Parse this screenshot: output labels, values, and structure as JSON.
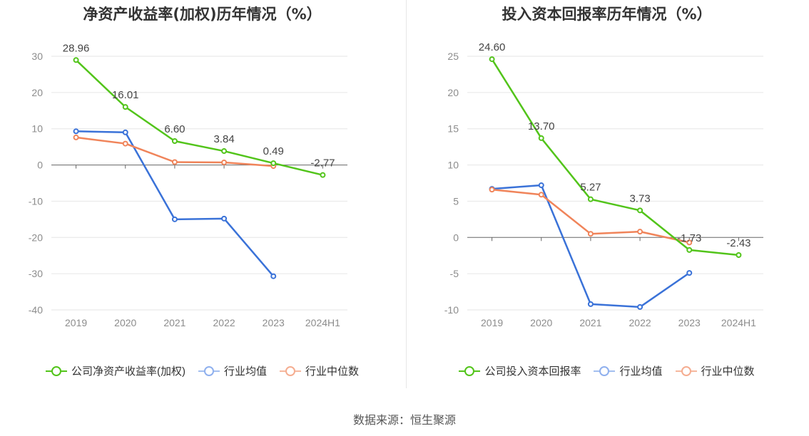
{
  "source_text": "数据来源：恒生聚源",
  "colors": {
    "company": "#52c41a",
    "average": "#3a72d8",
    "median": "#f0845a",
    "grid": "#e6e6e6",
    "axis": "#666666",
    "tick_text": "#8c8c8c",
    "label_text": "#444444"
  },
  "chart_data": [
    {
      "type": "line",
      "title": "净资产收益率(加权)历年情况（%）",
      "categories": [
        "2019",
        "2020",
        "2021",
        "2022",
        "2023",
        "2024H1"
      ],
      "ylim": [
        -40,
        30
      ],
      "yticks": [
        "30",
        "20",
        "10",
        "0",
        "-10",
        "-20",
        "-30",
        "-40"
      ],
      "ytick_values": [
        30,
        20,
        10,
        0,
        -10,
        -20,
        -30,
        -40
      ],
      "grid": true,
      "legend_position": "bottom",
      "series": [
        {
          "name": "公司净资产收益率(加权)",
          "color_key": "company",
          "values": [
            28.96,
            16.01,
            6.6,
            3.84,
            0.49,
            -2.77
          ],
          "labels": [
            "28.96",
            "16.01",
            "6.60",
            "3.84",
            "0.49",
            "-2.77"
          ]
        },
        {
          "name": "行业均值",
          "color_key": "average",
          "values": [
            9.3,
            9.0,
            -15.0,
            -14.8,
            -30.7,
            null
          ]
        },
        {
          "name": "行业中位数",
          "color_key": "median",
          "values": [
            7.6,
            5.9,
            0.8,
            0.7,
            -0.3,
            null
          ]
        }
      ]
    },
    {
      "type": "line",
      "title": "投入资本回报率历年情况（%）",
      "categories": [
        "2019",
        "2020",
        "2021",
        "2022",
        "2023",
        "2024H1"
      ],
      "ylim": [
        -10,
        25
      ],
      "yticks": [
        "25",
        "20",
        "15",
        "10",
        "5",
        "0",
        "-5",
        "-10"
      ],
      "ytick_values": [
        25,
        20,
        15,
        10,
        5,
        0,
        -5,
        -10
      ],
      "grid": true,
      "legend_position": "bottom",
      "series": [
        {
          "name": "公司投入资本回报率",
          "color_key": "company",
          "values": [
            24.6,
            13.7,
            5.27,
            3.73,
            -1.73,
            -2.43
          ],
          "labels": [
            "24.60",
            "13.70",
            "5.27",
            "3.73",
            "-1.73",
            "-2.43"
          ]
        },
        {
          "name": "行业均值",
          "color_key": "average",
          "values": [
            6.7,
            7.2,
            -9.2,
            -9.6,
            -4.9,
            null
          ]
        },
        {
          "name": "行业中位数",
          "color_key": "median",
          "values": [
            6.6,
            5.9,
            0.5,
            0.8,
            -0.7,
            null
          ]
        }
      ]
    }
  ]
}
